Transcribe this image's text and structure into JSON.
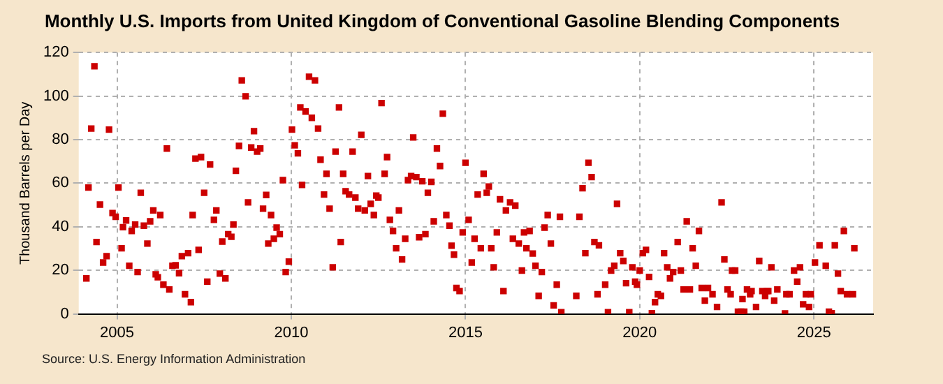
{
  "chart_data": {
    "type": "scatter",
    "title": "Monthly U.S. Imports from United Kingdom of Conventional Gasoline Blending Components",
    "ylabel": "Thousand Barrels per Day",
    "annotations": [
      "Source: U.S. Energy Information Administration"
    ],
    "x": [
      2004.12,
      2004.18,
      2004.26,
      2004.35,
      2004.41,
      2004.51,
      2004.6,
      2004.7,
      2004.77,
      2004.87,
      2004.96,
      2005.04,
      2005.13,
      2005.17,
      2005.26,
      2005.35,
      2005.42,
      2005.52,
      2005.59,
      2005.68,
      2005.77,
      2005.87,
      2005.95,
      2006.04,
      2006.11,
      2006.17,
      2006.24,
      2006.33,
      2006.43,
      2006.5,
      2006.59,
      2006.68,
      2006.78,
      2006.86,
      2006.95,
      2007.04,
      2007.12,
      2007.17,
      2007.25,
      2007.34,
      2007.41,
      2007.5,
      2007.59,
      2007.67,
      2007.78,
      2007.85,
      2007.95,
      2008.02,
      2008.11,
      2008.19,
      2008.28,
      2008.34,
      2008.41,
      2008.5,
      2008.58,
      2008.69,
      2008.76,
      2008.85,
      2008.93,
      2009.02,
      2009.11,
      2009.19,
      2009.28,
      2009.34,
      2009.42,
      2009.5,
      2009.58,
      2009.67,
      2009.76,
      2009.84,
      2009.93,
      2010.02,
      2010.1,
      2010.19,
      2010.26,
      2010.31,
      2010.41,
      2010.51,
      2010.59,
      2010.68,
      2010.77,
      2010.84,
      2010.94,
      2011.01,
      2011.1,
      2011.19,
      2011.27,
      2011.37,
      2011.42,
      2011.49,
      2011.56,
      2011.66,
      2011.76,
      2011.84,
      2011.92,
      2012.01,
      2012.11,
      2012.2,
      2012.28,
      2012.37,
      2012.44,
      2012.5,
      2012.59,
      2012.68,
      2012.75,
      2012.83,
      2012.92,
      2013.01,
      2013.09,
      2013.18,
      2013.27,
      2013.35,
      2013.44,
      2013.5,
      2013.59,
      2013.67,
      2013.76,
      2013.85,
      2013.92,
      2014.02,
      2014.09,
      2014.18,
      2014.27,
      2014.35,
      2014.45,
      2014.54,
      2014.6,
      2014.67,
      2014.74,
      2014.83,
      2014.92,
      2015,
      2015.09,
      2015.18,
      2015.26,
      2015.35,
      2015.44,
      2015.52,
      2015.61,
      2015.67,
      2015.74,
      2015.81,
      2015.9,
      2015.99,
      2016.09,
      2016.16,
      2016.28,
      2016.36,
      2016.43,
      2016.53,
      2016.62,
      2016.68,
      2016.75,
      2016.84,
      2016.93,
      2017.01,
      2017.1,
      2017.19,
      2017.27,
      2017.36,
      2017.45,
      2017.53,
      2017.62,
      2017.71,
      2017.75,
      2018.18,
      2018.27,
      2018.36,
      2018.44,
      2018.53,
      2018.62,
      2018.7,
      2018.79,
      2018.83,
      2019.01,
      2019.09,
      2019.18,
      2019.27,
      2019.35,
      2019.44,
      2019.53,
      2019.61,
      2019.7,
      2019.79,
      2019.87,
      2019.92,
      2020,
      2020.09,
      2020.18,
      2020.27,
      2020.35,
      2020.44,
      2020.52,
      2020.61,
      2020.7,
      2020.79,
      2020.87,
      2020.96,
      2021.09,
      2021.18,
      2021.26,
      2021.35,
      2021.44,
      2021.52,
      2021.61,
      2021.7,
      2021.78,
      2021.87,
      2021.96,
      2022.09,
      2022.22,
      2022.35,
      2022.43,
      2022.52,
      2022.61,
      2022.65,
      2022.74,
      2022.82,
      2022.91,
      2022.95,
      2023,
      2023.08,
      2023.17,
      2023.21,
      2023.34,
      2023.43,
      2023.52,
      2023.6,
      2023.65,
      2023.69,
      2023.78,
      2023.86,
      2023.95,
      2024.17,
      2024.21,
      2024.3,
      2024.43,
      2024.52,
      2024.6,
      2024.69,
      2024.77,
      2024.86,
      2024.91,
      2025.03,
      2025.16,
      2025.34,
      2025.43,
      2025.51,
      2025.6,
      2025.69,
      2025.77,
      2025.86,
      2025.95,
      2026.12,
      2026.16
    ],
    "series": [
      {
        "color": "#cc0000",
        "values": [
          16.3,
          58,
          85.1,
          113.7,
          33,
          50.2,
          23.6,
          26.5,
          84.6,
          46.3,
          44.6,
          58,
          30.1,
          39.8,
          42.9,
          22.1,
          38.1,
          41,
          19.2,
          55.6,
          40.5,
          32.3,
          42.5,
          47.5,
          18.2,
          16.8,
          45.4,
          13.4,
          75.9,
          11.2,
          22.1,
          22.3,
          18.7,
          26.5,
          9,
          27.9,
          5.4,
          45.4,
          71.3,
          29.4,
          72,
          55.6,
          14.8,
          68.6,
          43.2,
          47.5,
          18.5,
          33.2,
          16.3,
          36.6,
          35.4,
          41,
          65.7,
          77.1,
          107.2,
          99.9,
          51.2,
          76.4,
          83.9,
          74.5,
          75.9,
          48.3,
          54.6,
          32.3,
          45.4,
          34.5,
          39.6,
          36.6,
          61.4,
          19.2,
          24,
          84.6,
          77.4,
          73.7,
          94.8,
          59.2,
          92.9,
          108.9,
          90,
          107.2,
          85.1,
          70.8,
          54.8,
          64.3,
          48.3,
          21.4,
          74.5,
          94.8,
          33,
          64.3,
          56.3,
          54.8,
          74.5,
          53.4,
          48.3,
          82.2,
          47.5,
          63.3,
          50.5,
          45.4,
          54.3,
          53.4,
          96.8,
          64.3,
          72,
          43.2,
          38.1,
          30.1,
          47.5,
          25,
          34.5,
          61.4,
          63.3,
          81,
          62.8,
          35.2,
          60.9,
          36.6,
          55.6,
          60.6,
          42.5,
          75.9,
          67.9,
          91.9,
          45.4,
          40.5,
          31.3,
          27.2,
          11.9,
          10.5,
          37.4,
          69.4,
          43.2,
          23.6,
          34.5,
          54.8,
          30.1,
          64.3,
          55.6,
          58.5,
          30.1,
          21.4,
          37.4,
          52.6,
          10.5,
          47.5,
          51.2,
          34.5,
          49.7,
          32.3,
          19.9,
          37.4,
          30.1,
          38.1,
          27.7,
          22.1,
          8.3,
          19.2,
          39.6,
          45.4,
          32.3,
          3.9,
          13.4,
          44.6,
          0.8,
          8.3,
          44.6,
          57.7,
          27.9,
          69.4,
          62.8,
          33,
          9,
          31.5,
          13.4,
          0.8,
          19.9,
          22.1,
          50.5,
          27.9,
          24.3,
          14.1,
          0.8,
          21.4,
          14.8,
          13.4,
          19.9,
          27.9,
          29.4,
          17,
          0.3,
          5.4,
          9,
          8.3,
          27.9,
          21.4,
          16.3,
          19.2,
          33,
          19.9,
          11.2,
          42.5,
          11.2,
          30.1,
          22.1,
          38.1,
          11.9,
          6.1,
          11.9,
          9,
          3.2,
          51.2,
          25,
          11.2,
          9,
          19.9,
          19.9,
          1,
          1,
          6.8,
          1,
          11.2,
          9,
          10.5,
          3.2,
          24.3,
          10.5,
          8.3,
          10.5,
          10.5,
          21.4,
          6.1,
          11.2,
          0.2,
          9,
          9,
          19.9,
          14.8,
          21.4,
          4.4,
          9,
          3.2,
          9,
          23.6,
          31.5,
          22.1,
          1,
          0.3,
          31.5,
          18.5,
          10.5,
          38.1,
          9,
          9,
          30.1
        ]
      }
    ],
    "xlim": [
      2003.9,
      2026.7
    ],
    "xticks": [
      2005,
      2010,
      2015,
      2020,
      2025
    ],
    "ylim": [
      0,
      120
    ],
    "yticks": [
      0,
      20,
      40,
      60,
      80,
      100,
      120
    ],
    "grid": true,
    "marker": "square",
    "legend": false
  }
}
